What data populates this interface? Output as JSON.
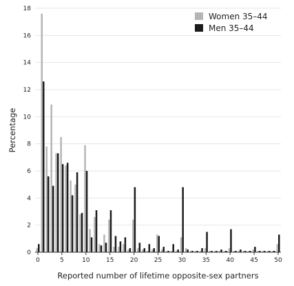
{
  "chart_data": {
    "type": "bar",
    "xlabel": "Reported number of lifetime opposite-sex partners",
    "ylabel": "Percentage",
    "xlim": [
      0,
      50
    ],
    "ylim": [
      0,
      18
    ],
    "x_ticks": [
      0,
      5,
      10,
      15,
      20,
      25,
      30,
      35,
      40,
      45,
      50
    ],
    "y_ticks": [
      0,
      2,
      4,
      6,
      8,
      10,
      12,
      14,
      16,
      18
    ],
    "grid": "horizontal",
    "legend": "top-right",
    "series": [
      {
        "name": "Women 35–44",
        "color": "#b5b5b5",
        "x": [
          0,
          1,
          2,
          3,
          4,
          5,
          6,
          7,
          8,
          9,
          10,
          11,
          12,
          13,
          14,
          15,
          16,
          17,
          18,
          19,
          20,
          21,
          22,
          23,
          24,
          25,
          26,
          27,
          28,
          29,
          30,
          31,
          32,
          33,
          34,
          35,
          36,
          37,
          38,
          39,
          40,
          41,
          42,
          43,
          44,
          45,
          46,
          47,
          48,
          49,
          50
        ],
        "values": [
          0.3,
          17.6,
          7.8,
          10.9,
          7.3,
          8.5,
          6.4,
          5.3,
          5.0,
          2.8,
          7.9,
          1.7,
          2.6,
          0.6,
          1.3,
          2.4,
          0.4,
          0.4,
          0.6,
          0.2,
          2.4,
          0.3,
          0.2,
          0.1,
          0.2,
          1.3,
          0.2,
          0.1,
          0.1,
          0.1,
          1.1,
          0.3,
          0.1,
          0.1,
          0.1,
          0.3,
          0.1,
          0.1,
          0.1,
          0.1,
          0.3,
          0.1,
          0.1,
          0.1,
          0.1,
          0.2,
          0.1,
          0.1,
          0.1,
          0.1,
          0.6
        ]
      },
      {
        "name": "Men 35–44",
        "color": "#1c1c1c",
        "x": [
          0,
          1,
          2,
          3,
          4,
          5,
          6,
          7,
          8,
          9,
          10,
          11,
          12,
          13,
          14,
          15,
          16,
          17,
          18,
          19,
          20,
          21,
          22,
          23,
          24,
          25,
          26,
          27,
          28,
          29,
          30,
          31,
          32,
          33,
          34,
          35,
          36,
          37,
          38,
          39,
          40,
          41,
          42,
          43,
          44,
          45,
          46,
          47,
          48,
          49,
          50
        ],
        "values": [
          0.6,
          12.6,
          5.6,
          4.9,
          7.3,
          6.5,
          6.6,
          4.2,
          5.9,
          2.9,
          6.0,
          1.1,
          3.1,
          0.5,
          0.7,
          3.1,
          1.2,
          0.8,
          1.1,
          0.3,
          4.8,
          0.7,
          0.3,
          0.6,
          0.3,
          1.2,
          0.4,
          0.1,
          0.6,
          0.2,
          4.8,
          0.2,
          0.1,
          0.1,
          0.3,
          1.5,
          0.1,
          0.1,
          0.2,
          0.1,
          1.7,
          0.1,
          0.2,
          0.1,
          0.1,
          0.4,
          0.1,
          0.1,
          0.1,
          0.1,
          1.3
        ]
      }
    ]
  }
}
